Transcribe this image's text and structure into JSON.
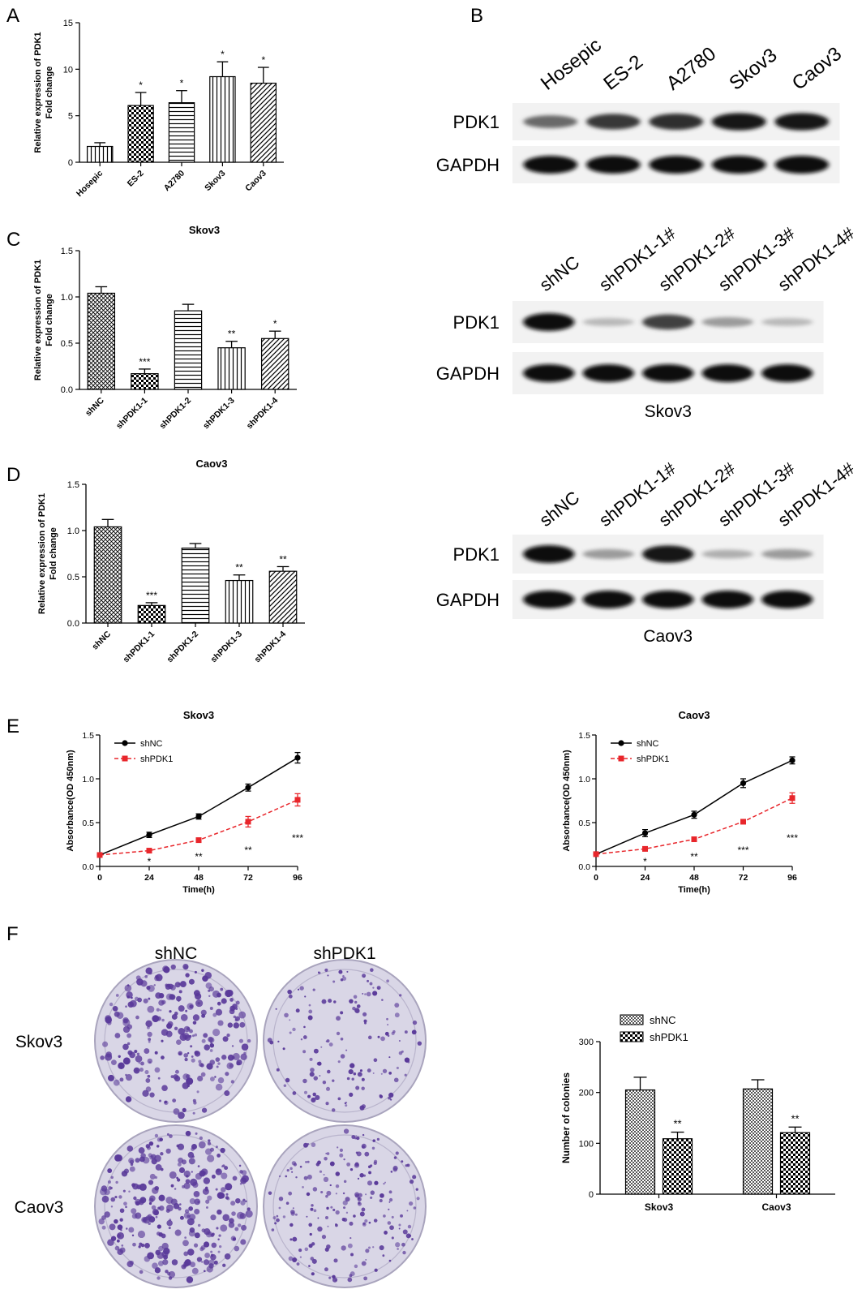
{
  "panel_labels": [
    "A",
    "B",
    "C",
    "D",
    "E",
    "F"
  ],
  "chart_data": [
    {
      "id": "A",
      "type": "bar",
      "title": "",
      "ylabel": [
        "Relative expression of PDK1",
        "Fold change"
      ],
      "categories": [
        "Hosepic",
        "ES-2",
        "A2780",
        "Skov3",
        "Caov3"
      ],
      "values": [
        1.7,
        6.1,
        6.4,
        9.2,
        8.5
      ],
      "errors": [
        0.4,
        1.4,
        1.3,
        1.6,
        1.7
      ],
      "significance": [
        "",
        "*",
        "*",
        "*",
        "*"
      ],
      "patterns": [
        "vlines",
        "checker",
        "hlines",
        "vlines",
        "diag"
      ],
      "ylim": [
        0,
        15
      ],
      "yticks": [
        "0",
        "5",
        "10",
        "15"
      ],
      "yticks_values": [
        0,
        5,
        10,
        15
      ]
    },
    {
      "id": "C",
      "type": "bar",
      "title": "Skov3",
      "ylabel": [
        "Relative expression of PDK1",
        "Fold change"
      ],
      "categories": [
        "shNC",
        "shPDK1-1",
        "shPDK1-2",
        "shPDK1-3",
        "shPDK1-4"
      ],
      "values": [
        1.04,
        0.17,
        0.85,
        0.45,
        0.55
      ],
      "errors": [
        0.07,
        0.05,
        0.07,
        0.07,
        0.08
      ],
      "significance": [
        "",
        "***",
        "",
        "**",
        "*"
      ],
      "patterns": [
        "cross",
        "checker",
        "hlines",
        "vlines",
        "diag"
      ],
      "ylim": [
        0,
        1.5
      ],
      "yticks": [
        "0.0",
        "0.5",
        "1.0",
        "1.5"
      ],
      "yticks_values": [
        0,
        0.5,
        1.0,
        1.5
      ]
    },
    {
      "id": "D",
      "type": "bar",
      "title": "Caov3",
      "ylabel": [
        "Relative expression of PDK1",
        "Fold change"
      ],
      "categories": [
        "shNC",
        "shPDK1-1",
        "shPDK1-2",
        "shPDK1-3",
        "shPDK1-4"
      ],
      "values": [
        1.04,
        0.19,
        0.81,
        0.46,
        0.56
      ],
      "errors": [
        0.08,
        0.03,
        0.05,
        0.06,
        0.05
      ],
      "significance": [
        "",
        "***",
        "",
        "**",
        "**"
      ],
      "patterns": [
        "cross",
        "checker",
        "hlines",
        "vlines",
        "diag"
      ],
      "ylim": [
        0,
        1.5
      ],
      "yticks": [
        "0.0",
        "0.5",
        "1.0",
        "1.5"
      ],
      "yticks_values": [
        0,
        0.5,
        1.0,
        1.5
      ]
    },
    {
      "id": "E1",
      "type": "line",
      "title": "Skov3",
      "xlabel": "Time(h)",
      "ylabel": "Absorbance(OD 450nm)",
      "x": [
        0,
        24,
        48,
        72,
        96
      ],
      "series": [
        {
          "name": "shNC",
          "values": [
            0.13,
            0.36,
            0.57,
            0.9,
            1.24
          ],
          "errors": [
            0.01,
            0.03,
            0.03,
            0.04,
            0.06
          ],
          "color": "#000000",
          "dash": false,
          "marker": "circle"
        },
        {
          "name": "shPDK1",
          "values": [
            0.13,
            0.18,
            0.3,
            0.51,
            0.76
          ],
          "errors": [
            0.01,
            0.02,
            0.02,
            0.06,
            0.07
          ],
          "color": "#e8262b",
          "dash": true,
          "marker": "square"
        }
      ],
      "significance": [
        "",
        "*",
        "**",
        "**",
        "***"
      ],
      "xlim": [
        0,
        96
      ],
      "ylim": [
        0,
        1.5
      ],
      "xticks": [
        "0",
        "24",
        "48",
        "72",
        "96"
      ],
      "yticks": [
        "0.0",
        "0.5",
        "1.0",
        "1.5"
      ],
      "yticks_values": [
        0,
        0.5,
        1.0,
        1.5
      ]
    },
    {
      "id": "E2",
      "type": "line",
      "title": "Caov3",
      "xlabel": "Time(h)",
      "ylabel": "Absorbance(OD 450nm)",
      "x": [
        0,
        24,
        48,
        72,
        96
      ],
      "series": [
        {
          "name": "shNC",
          "values": [
            0.14,
            0.38,
            0.59,
            0.95,
            1.21
          ],
          "errors": [
            0.01,
            0.04,
            0.04,
            0.05,
            0.04
          ],
          "color": "#000000",
          "dash": false,
          "marker": "circle"
        },
        {
          "name": "shPDK1",
          "values": [
            0.14,
            0.2,
            0.31,
            0.51,
            0.78
          ],
          "errors": [
            0.01,
            0.01,
            0.02,
            0.01,
            0.06
          ],
          "color": "#e8262b",
          "dash": true,
          "marker": "square"
        }
      ],
      "significance": [
        "",
        "*",
        "**",
        "***",
        "***"
      ],
      "xlim": [
        0,
        96
      ],
      "ylim": [
        0,
        1.5
      ],
      "xticks": [
        "0",
        "24",
        "48",
        "72",
        "96"
      ],
      "yticks": [
        "0.0",
        "0.5",
        "1.0",
        "1.5"
      ],
      "yticks_values": [
        0,
        0.5,
        1.0,
        1.5
      ]
    },
    {
      "id": "F",
      "type": "bar",
      "title": "",
      "ylabel": "Number of colonies",
      "categories": [
        "Skov3",
        "Caov3"
      ],
      "series": [
        {
          "name": "shNC",
          "values": [
            205,
            207
          ],
          "errors": [
            25,
            18
          ],
          "pattern": "fineChecker"
        },
        {
          "name": "shPDK1",
          "values": [
            109,
            121
          ],
          "errors": [
            13,
            11
          ],
          "pattern": "checker"
        }
      ],
      "significance": [
        "**",
        "**"
      ],
      "legend": "top-left",
      "ylim": [
        0,
        300
      ],
      "yticks": [
        "0",
        "100",
        "200",
        "300"
      ],
      "yticks_values": [
        0,
        100,
        200,
        300
      ]
    }
  ],
  "western_blots": [
    {
      "id": "B",
      "lanes": [
        "Hosepic",
        "ES-2",
        "A2780",
        "Skov3",
        "Caov3"
      ],
      "rows": [
        "PDK1",
        "GAPDH"
      ],
      "caption": "",
      "intensity": [
        [
          0.55,
          0.8,
          0.85,
          0.95,
          0.95
        ],
        [
          1,
          1,
          1,
          1,
          1
        ]
      ]
    },
    {
      "id": "C-blot",
      "lanes": [
        "shNC",
        "shPDK1-1#",
        "shPDK1-2#",
        "shPDK1-3#",
        "shPDK1-4#"
      ],
      "rows": [
        "PDK1",
        "GAPDH"
      ],
      "caption": "Skov3",
      "intensity": [
        [
          1.0,
          0.15,
          0.75,
          0.3,
          0.15
        ],
        [
          1,
          1,
          1,
          1,
          1
        ]
      ]
    },
    {
      "id": "D-blot",
      "lanes": [
        "shNC",
        "shPDK1-1#",
        "shPDK1-2#",
        "shPDK1-3#",
        "shPDK1-4#"
      ],
      "rows": [
        "PDK1",
        "GAPDH"
      ],
      "caption": "Caov3",
      "intensity": [
        [
          1.0,
          0.3,
          0.95,
          0.2,
          0.3
        ],
        [
          1,
          1,
          1,
          1,
          1
        ]
      ]
    }
  ],
  "colony_plates": {
    "columns": [
      "shNC",
      "shPDK1"
    ],
    "rows": [
      "Skov3",
      "Caov3"
    ],
    "density": [
      [
        260,
        150
      ],
      [
        300,
        210
      ]
    ],
    "colony_color": "#5a3a9a",
    "plate_color": "#d9d6e6"
  }
}
